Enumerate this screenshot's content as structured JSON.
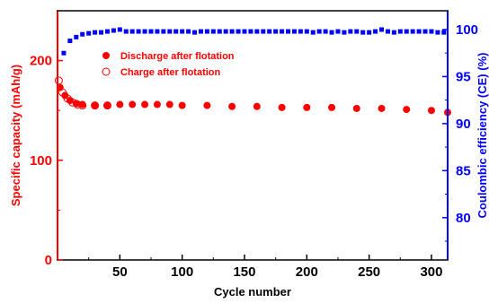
{
  "chart_data": {
    "type": "scatter",
    "xlabel": "Cycle number",
    "ylabel_left": "Specific capacity (mAh/g)",
    "ylabel_right": "Coulombic efficiency (CE) (%)",
    "xlim": [
      0,
      313
    ],
    "ylim_left": [
      0,
      250
    ],
    "ylim_right": [
      75.5,
      102
    ],
    "x_ticks": [
      50,
      100,
      150,
      200,
      250,
      300
    ],
    "y_ticks_left": [
      0,
      100,
      200
    ],
    "y_ticks_right": [
      80,
      85,
      90,
      95,
      100
    ],
    "grid": false,
    "legend_position": "top-left",
    "colors": {
      "left_axis": "#ff0000",
      "right_axis": "#0000ff",
      "frame": "#000000"
    },
    "series": [
      {
        "name": "Discharge after flotation",
        "axis": "left",
        "marker": "filled-circle",
        "color": "#ff0000",
        "x": [
          2,
          6,
          10,
          15,
          20,
          30,
          40,
          50,
          60,
          70,
          80,
          90,
          100,
          120,
          140,
          160,
          180,
          200,
          220,
          240,
          260,
          280,
          300,
          313
        ],
        "y": [
          173,
          165,
          160,
          157,
          156,
          155,
          155,
          156,
          156,
          156,
          156,
          156,
          155,
          155,
          154,
          154,
          153,
          153,
          153,
          152,
          152,
          151,
          150,
          148
        ]
      },
      {
        "name": "Charge after flotation",
        "axis": "left",
        "marker": "open-circle",
        "color": "#ff0000",
        "x": [
          1,
          4,
          8,
          12,
          16,
          20,
          30,
          40
        ],
        "y": [
          180,
          168,
          162,
          158,
          156,
          155,
          155,
          155
        ]
      },
      {
        "axis": "right",
        "marker": "filled-square",
        "color": "#0000ff",
        "x": [
          5,
          10,
          15,
          20,
          25,
          30,
          35,
          40,
          45,
          50,
          55,
          60,
          65,
          70,
          75,
          80,
          85,
          90,
          95,
          100,
          105,
          110,
          115,
          120,
          125,
          130,
          135,
          140,
          145,
          150,
          155,
          160,
          165,
          170,
          175,
          180,
          185,
          190,
          195,
          200,
          205,
          210,
          215,
          220,
          225,
          230,
          235,
          240,
          245,
          250,
          255,
          260,
          265,
          270,
          275,
          280,
          285,
          290,
          295,
          300,
          305,
          310
        ],
        "y": [
          97.5,
          98.8,
          99.2,
          99.5,
          99.6,
          99.7,
          99.7,
          99.8,
          99.9,
          100.0,
          99.8,
          99.8,
          99.8,
          99.8,
          99.8,
          99.8,
          99.8,
          99.8,
          99.8,
          99.8,
          99.8,
          99.7,
          99.8,
          99.8,
          99.8,
          99.8,
          99.8,
          99.8,
          99.8,
          99.8,
          99.8,
          99.8,
          99.8,
          99.8,
          99.8,
          99.8,
          99.8,
          99.8,
          99.8,
          99.8,
          99.7,
          99.8,
          99.8,
          99.7,
          99.8,
          99.7,
          99.8,
          99.8,
          99.7,
          99.7,
          99.8,
          100.0,
          99.8,
          99.7,
          99.8,
          99.8,
          99.8,
          99.8,
          99.8,
          99.8,
          99.7,
          99.7
        ]
      }
    ]
  }
}
